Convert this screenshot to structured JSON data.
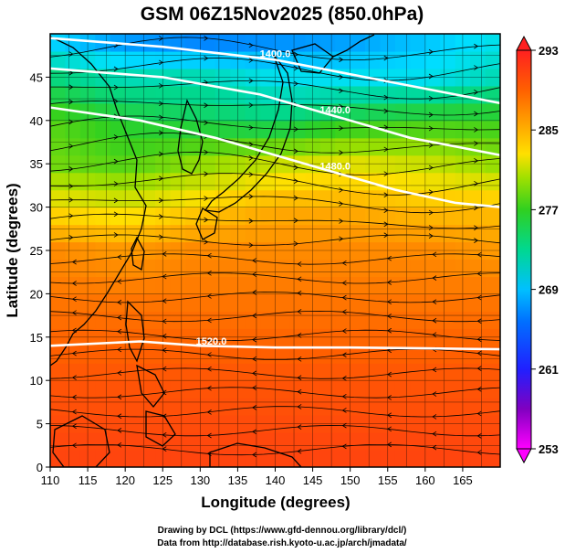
{
  "title": "GSM 06Z15Nov2025 (850.0hPa)",
  "xlabel": "Longitude (degrees)",
  "ylabel": "Latitude (degrees)",
  "credits": [
    "Drawing by DCL (https://www.gfd-dennou.org/library/dcl/)",
    "Data from http://database.rish.kyoto-u.ac.jp/arch/jmadata/"
  ],
  "chart_data": {
    "type": "heatmap",
    "title": "GSM 06Z15Nov2025 (850.0hPa)",
    "xlabel": "Longitude (degrees)",
    "ylabel": "Latitude (degrees)",
    "xlim": [
      110,
      170
    ],
    "ylim": [
      0,
      50
    ],
    "x_ticks": [
      110,
      115,
      120,
      125,
      130,
      135,
      140,
      145,
      150,
      155,
      160,
      165
    ],
    "y_ticks": [
      0,
      5,
      10,
      15,
      20,
      25,
      30,
      35,
      40,
      45
    ],
    "grid": true,
    "colorbar": {
      "min": 253,
      "max": 293,
      "ticks": [
        253,
        261,
        269,
        277,
        285,
        293
      ],
      "colors": [
        "#ff00ff",
        "#6000c0",
        "#1a1aff",
        "#0090ff",
        "#00e0ff",
        "#00d890",
        "#30d020",
        "#a0e000",
        "#ffe000",
        "#ffa000",
        "#ff6000",
        "#ff2020"
      ]
    },
    "contours": [
      {
        "label": "1400.0",
        "points": [
          [
            110,
            49.5
          ],
          [
            125,
            48.5
          ],
          [
            140,
            47
          ],
          [
            155,
            44.5
          ],
          [
            170,
            42
          ]
        ]
      },
      {
        "label": "1440.0",
        "points": [
          [
            110,
            46
          ],
          [
            125,
            45
          ],
          [
            138,
            43
          ],
          [
            148,
            40.5
          ],
          [
            158,
            38
          ],
          [
            170,
            36
          ]
        ]
      },
      {
        "label": "1480.0",
        "points": [
          [
            110,
            41.5
          ],
          [
            122,
            40
          ],
          [
            132,
            38
          ],
          [
            140,
            36
          ],
          [
            148,
            34
          ],
          [
            156,
            32
          ],
          [
            164,
            30.5
          ],
          [
            170,
            30
          ]
        ]
      },
      {
        "label": "1520.0",
        "points": [
          [
            110,
            14
          ],
          [
            122,
            14.5
          ],
          [
            130,
            14
          ],
          [
            140,
            13.8
          ],
          [
            150,
            13.8
          ],
          [
            160,
            13.7
          ],
          [
            170,
            13.6
          ]
        ]
      }
    ],
    "temperature_field": {
      "x": [
        110,
        120,
        130,
        140,
        150,
        160,
        170
      ],
      "y": [
        0,
        10,
        20,
        25,
        30,
        35,
        40,
        45,
        50
      ],
      "values": [
        [
          291,
          291,
          291,
          291,
          291,
          291,
          291
        ],
        [
          290,
          290,
          290,
          290,
          290,
          290,
          290
        ],
        [
          288,
          288,
          288,
          288,
          288,
          288,
          288
        ],
        [
          287,
          286,
          287,
          287,
          287,
          287,
          286
        ],
        [
          282,
          281,
          283,
          285,
          285,
          284,
          284
        ],
        [
          277,
          276,
          278,
          280,
          281,
          280,
          278
        ],
        [
          276,
          274,
          273,
          272,
          274,
          275,
          275
        ],
        [
          272,
          270,
          270,
          268,
          268,
          268,
          270
        ],
        [
          266,
          263,
          262,
          263,
          264,
          266,
          268
        ]
      ]
    }
  }
}
